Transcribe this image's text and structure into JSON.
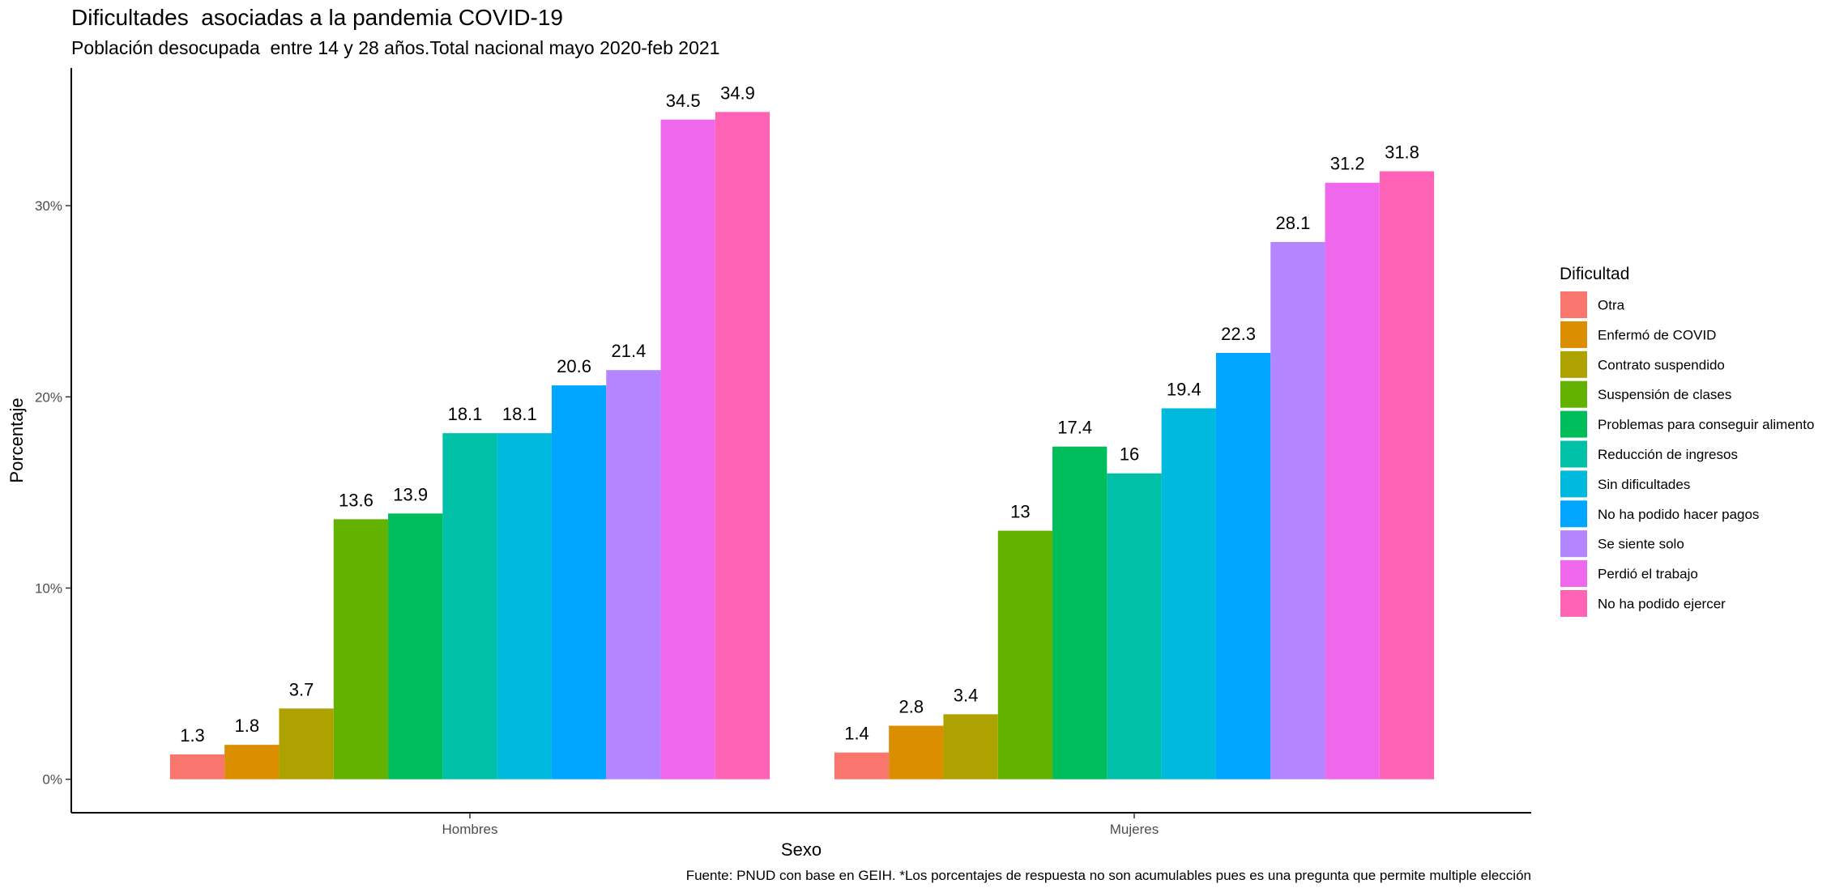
{
  "chart_data": {
    "type": "bar",
    "title": "Dificultades  asociadas a la pandemia COVID-19",
    "subtitle": "Población desocupada  entre 14 y 28 años.Total nacional mayo 2020-feb 2021",
    "xlabel": "Sexo",
    "ylabel": "Porcentaje",
    "caption": "Fuente: PNUD con base en GEIH. *Los porcentajes de respuesta no son acumulables pues es una pregunta que permite multiple elección",
    "categories": [
      "Hombres",
      "Mujeres"
    ],
    "y_ticks": [
      {
        "value": 0,
        "label": "0%"
      },
      {
        "value": 10,
        "label": "10%"
      },
      {
        "value": 20,
        "label": "20%"
      },
      {
        "value": 30,
        "label": "30%"
      }
    ],
    "ylim": [
      -1.75,
      37.2
    ],
    "grid": false,
    "legend": {
      "title": "Dificultad",
      "placement": "right"
    },
    "series": [
      {
        "name": "Otra",
        "color": "#F8766D",
        "values": [
          1.3,
          1.4
        ],
        "labels": [
          "1.3",
          "1.4"
        ]
      },
      {
        "name": "Enfermó de COVID",
        "color": "#DB8E00",
        "values": [
          1.8,
          2.8
        ],
        "labels": [
          "1.8",
          "2.8"
        ]
      },
      {
        "name": "Contrato suspendido",
        "color": "#AEA200",
        "values": [
          3.7,
          3.4
        ],
        "labels": [
          "3.7",
          "3.4"
        ]
      },
      {
        "name": "Suspensión de clases",
        "color": "#64B200",
        "values": [
          13.6,
          13
        ],
        "labels": [
          "13.6",
          "13"
        ]
      },
      {
        "name": "Problemas para conseguir alimento",
        "color": "#00BD5C",
        "values": [
          13.9,
          17.4
        ],
        "labels": [
          "13.9",
          "17.4"
        ]
      },
      {
        "name": "Reducción de ingresos",
        "color": "#00C1A7",
        "values": [
          18.1,
          16
        ],
        "labels": [
          "18.1",
          "16"
        ]
      },
      {
        "name": "Sin dificultades",
        "color": "#00BADE",
        "values": [
          18.1,
          19.4
        ],
        "labels": [
          "18.1",
          "19.4"
        ]
      },
      {
        "name": "No ha podido hacer pagos",
        "color": "#00A6FF",
        "values": [
          20.6,
          22.3
        ],
        "labels": [
          "20.6",
          "22.3"
        ]
      },
      {
        "name": "Se siente solo",
        "color": "#B385FF",
        "values": [
          21.4,
          28.1
        ],
        "labels": [
          "21.4",
          "28.1"
        ]
      },
      {
        "name": "Perdió el trabajo",
        "color": "#EF67EB",
        "values": [
          34.5,
          31.2
        ],
        "labels": [
          "34.5",
          "31.2"
        ]
      },
      {
        "name": "No ha podido ejercer",
        "color": "#FF63B6",
        "values": [
          34.9,
          31.8
        ],
        "labels": [
          "34.9",
          "31.8"
        ]
      }
    ]
  }
}
